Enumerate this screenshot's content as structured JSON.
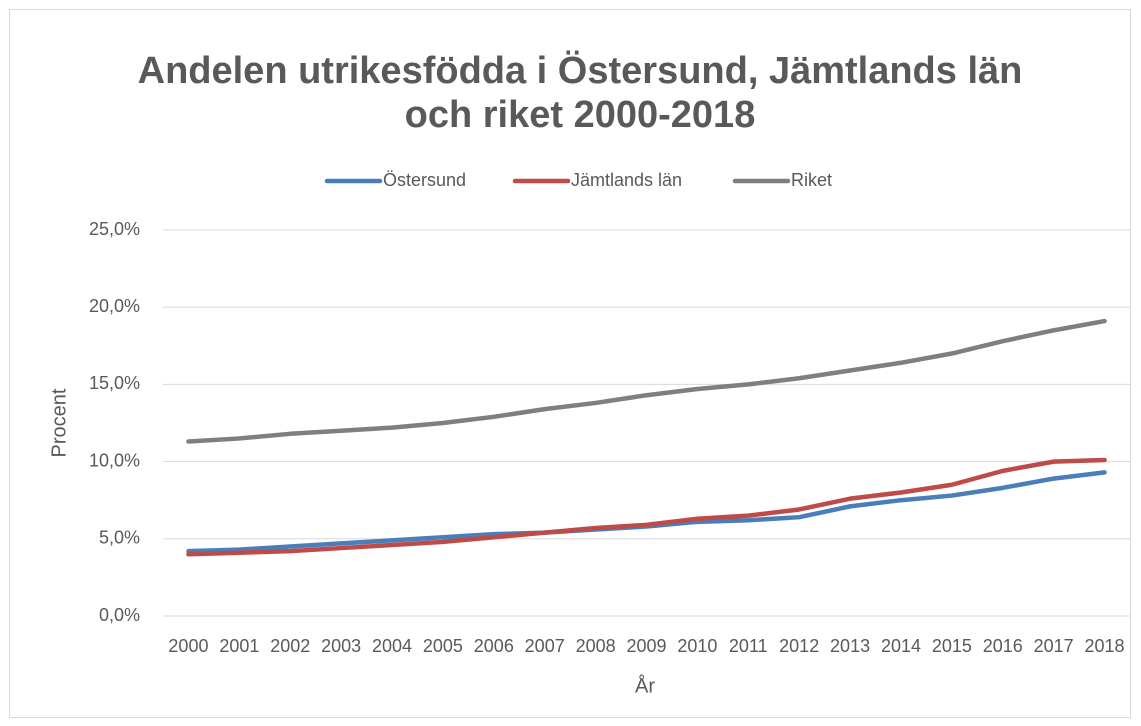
{
  "chart_data": {
    "type": "line",
    "title": [
      "Andelen utrikesfödda i Östersund, Jämtlands län",
      "och riket 2000-2018"
    ],
    "x_label": "År",
    "y_label": "Procent",
    "categories": [
      "2000",
      "2001",
      "2002",
      "2003",
      "2004",
      "2005",
      "2006",
      "2007",
      "2008",
      "2009",
      "2010",
      "2011",
      "2012",
      "2013",
      "2014",
      "2015",
      "2016",
      "2017",
      "2018"
    ],
    "series": [
      {
        "name": "Östersund",
        "color": "#4a7ebb",
        "values": [
          4.2,
          4.3,
          4.5,
          4.7,
          4.9,
          5.1,
          5.3,
          5.4,
          5.6,
          5.8,
          6.1,
          6.2,
          6.4,
          7.1,
          7.5,
          7.8,
          8.3,
          8.9,
          9.3
        ]
      },
      {
        "name": "Jämtlands län",
        "color": "#be4b48",
        "values": [
          4.0,
          4.1,
          4.2,
          4.4,
          4.6,
          4.8,
          5.1,
          5.4,
          5.7,
          5.9,
          6.3,
          6.5,
          6.9,
          7.6,
          8.0,
          8.5,
          9.4,
          10.0,
          10.1
        ]
      },
      {
        "name": "Riket",
        "color": "#7f7f7f",
        "values": [
          11.3,
          11.5,
          11.8,
          12.0,
          12.2,
          12.5,
          12.9,
          13.4,
          13.8,
          14.3,
          14.7,
          15.0,
          15.4,
          15.9,
          16.4,
          17.0,
          17.8,
          18.5,
          19.1
        ]
      }
    ],
    "ylim": [
      0,
      25
    ],
    "yticks": [
      {
        "value": 0,
        "label": "0,0%"
      },
      {
        "value": 5,
        "label": "5,0%"
      },
      {
        "value": 10,
        "label": "10,0%"
      },
      {
        "value": 15,
        "label": "15,0%"
      },
      {
        "value": 20,
        "label": "20,0%"
      },
      {
        "value": 25,
        "label": "25,0%"
      }
    ],
    "grid": true,
    "legend": "top"
  }
}
